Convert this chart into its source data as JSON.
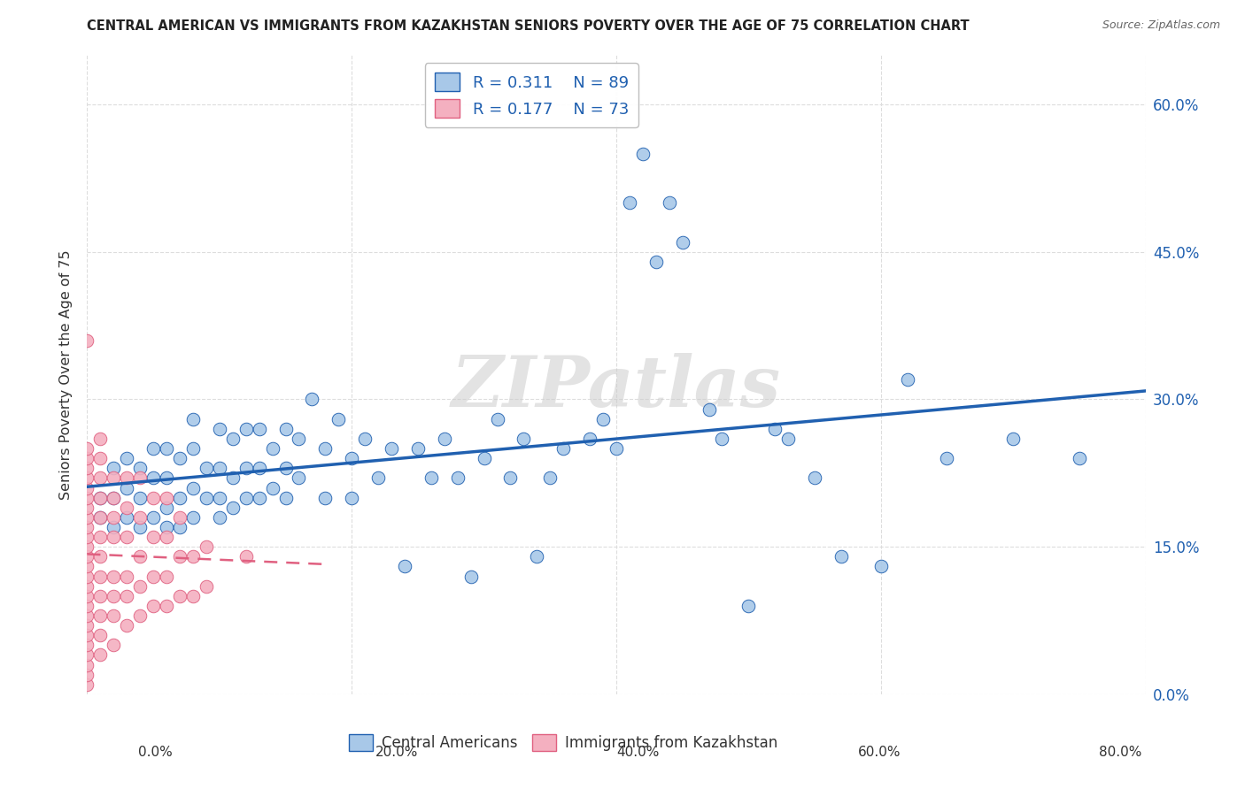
{
  "title": "CENTRAL AMERICAN VS IMMIGRANTS FROM KAZAKHSTAN SENIORS POVERTY OVER THE AGE OF 75 CORRELATION CHART",
  "source": "Source: ZipAtlas.com",
  "ylabel": "Seniors Poverty Over the Age of 75",
  "blue_R": 0.311,
  "blue_N": 89,
  "pink_R": 0.177,
  "pink_N": 73,
  "blue_label": "Central Americans",
  "pink_label": "Immigrants from Kazakhstan",
  "xlim": [
    0.0,
    0.8
  ],
  "ylim": [
    0.0,
    0.65
  ],
  "xticks": [
    0.0,
    0.2,
    0.4,
    0.6,
    0.8
  ],
  "yticks": [
    0.0,
    0.15,
    0.3,
    0.45,
    0.6
  ],
  "blue_color": "#A8C8E8",
  "pink_color": "#F4B0C0",
  "blue_line_color": "#2060B0",
  "pink_line_color": "#E06080",
  "watermark_text": "ZIPatlas",
  "blue_scatter_x": [
    0.01,
    0.01,
    0.02,
    0.02,
    0.02,
    0.03,
    0.03,
    0.03,
    0.04,
    0.04,
    0.04,
    0.05,
    0.05,
    0.05,
    0.06,
    0.06,
    0.06,
    0.06,
    0.07,
    0.07,
    0.07,
    0.08,
    0.08,
    0.08,
    0.08,
    0.09,
    0.09,
    0.1,
    0.1,
    0.1,
    0.1,
    0.11,
    0.11,
    0.11,
    0.12,
    0.12,
    0.12,
    0.13,
    0.13,
    0.13,
    0.14,
    0.14,
    0.15,
    0.15,
    0.15,
    0.16,
    0.16,
    0.17,
    0.18,
    0.18,
    0.19,
    0.2,
    0.2,
    0.21,
    0.22,
    0.23,
    0.24,
    0.25,
    0.26,
    0.27,
    0.28,
    0.29,
    0.3,
    0.31,
    0.32,
    0.33,
    0.34,
    0.35,
    0.36,
    0.38,
    0.39,
    0.4,
    0.41,
    0.42,
    0.43,
    0.44,
    0.45,
    0.47,
    0.48,
    0.5,
    0.52,
    0.53,
    0.55,
    0.57,
    0.6,
    0.62,
    0.65,
    0.7,
    0.75
  ],
  "blue_scatter_y": [
    0.18,
    0.2,
    0.17,
    0.2,
    0.23,
    0.18,
    0.21,
    0.24,
    0.17,
    0.2,
    0.23,
    0.18,
    0.22,
    0.25,
    0.17,
    0.19,
    0.22,
    0.25,
    0.17,
    0.2,
    0.24,
    0.18,
    0.21,
    0.25,
    0.28,
    0.2,
    0.23,
    0.18,
    0.2,
    0.23,
    0.27,
    0.19,
    0.22,
    0.26,
    0.2,
    0.23,
    0.27,
    0.2,
    0.23,
    0.27,
    0.21,
    0.25,
    0.2,
    0.23,
    0.27,
    0.22,
    0.26,
    0.3,
    0.2,
    0.25,
    0.28,
    0.2,
    0.24,
    0.26,
    0.22,
    0.25,
    0.13,
    0.25,
    0.22,
    0.26,
    0.22,
    0.12,
    0.24,
    0.28,
    0.22,
    0.26,
    0.14,
    0.22,
    0.25,
    0.26,
    0.28,
    0.25,
    0.5,
    0.55,
    0.44,
    0.5,
    0.46,
    0.29,
    0.26,
    0.09,
    0.27,
    0.26,
    0.22,
    0.14,
    0.13,
    0.32,
    0.24,
    0.26,
    0.24
  ],
  "pink_scatter_x": [
    0.0,
    0.0,
    0.0,
    0.0,
    0.0,
    0.0,
    0.0,
    0.0,
    0.0,
    0.0,
    0.0,
    0.0,
    0.0,
    0.0,
    0.0,
    0.0,
    0.0,
    0.0,
    0.0,
    0.0,
    0.0,
    0.0,
    0.0,
    0.0,
    0.0,
    0.0,
    0.01,
    0.01,
    0.01,
    0.01,
    0.01,
    0.01,
    0.01,
    0.01,
    0.01,
    0.01,
    0.01,
    0.01,
    0.02,
    0.02,
    0.02,
    0.02,
    0.02,
    0.02,
    0.02,
    0.02,
    0.03,
    0.03,
    0.03,
    0.03,
    0.03,
    0.03,
    0.04,
    0.04,
    0.04,
    0.04,
    0.04,
    0.05,
    0.05,
    0.05,
    0.05,
    0.06,
    0.06,
    0.06,
    0.06,
    0.07,
    0.07,
    0.07,
    0.08,
    0.08,
    0.09,
    0.09,
    0.12
  ],
  "pink_scatter_y": [
    0.01,
    0.02,
    0.03,
    0.04,
    0.05,
    0.06,
    0.07,
    0.08,
    0.09,
    0.1,
    0.11,
    0.12,
    0.13,
    0.14,
    0.15,
    0.16,
    0.17,
    0.18,
    0.19,
    0.2,
    0.21,
    0.22,
    0.23,
    0.24,
    0.25,
    0.36,
    0.04,
    0.06,
    0.08,
    0.1,
    0.12,
    0.14,
    0.16,
    0.18,
    0.2,
    0.22,
    0.24,
    0.26,
    0.05,
    0.08,
    0.1,
    0.12,
    0.16,
    0.18,
    0.2,
    0.22,
    0.07,
    0.1,
    0.12,
    0.16,
    0.19,
    0.22,
    0.08,
    0.11,
    0.14,
    0.18,
    0.22,
    0.09,
    0.12,
    0.16,
    0.2,
    0.09,
    0.12,
    0.16,
    0.2,
    0.1,
    0.14,
    0.18,
    0.1,
    0.14,
    0.11,
    0.15,
    0.14
  ]
}
